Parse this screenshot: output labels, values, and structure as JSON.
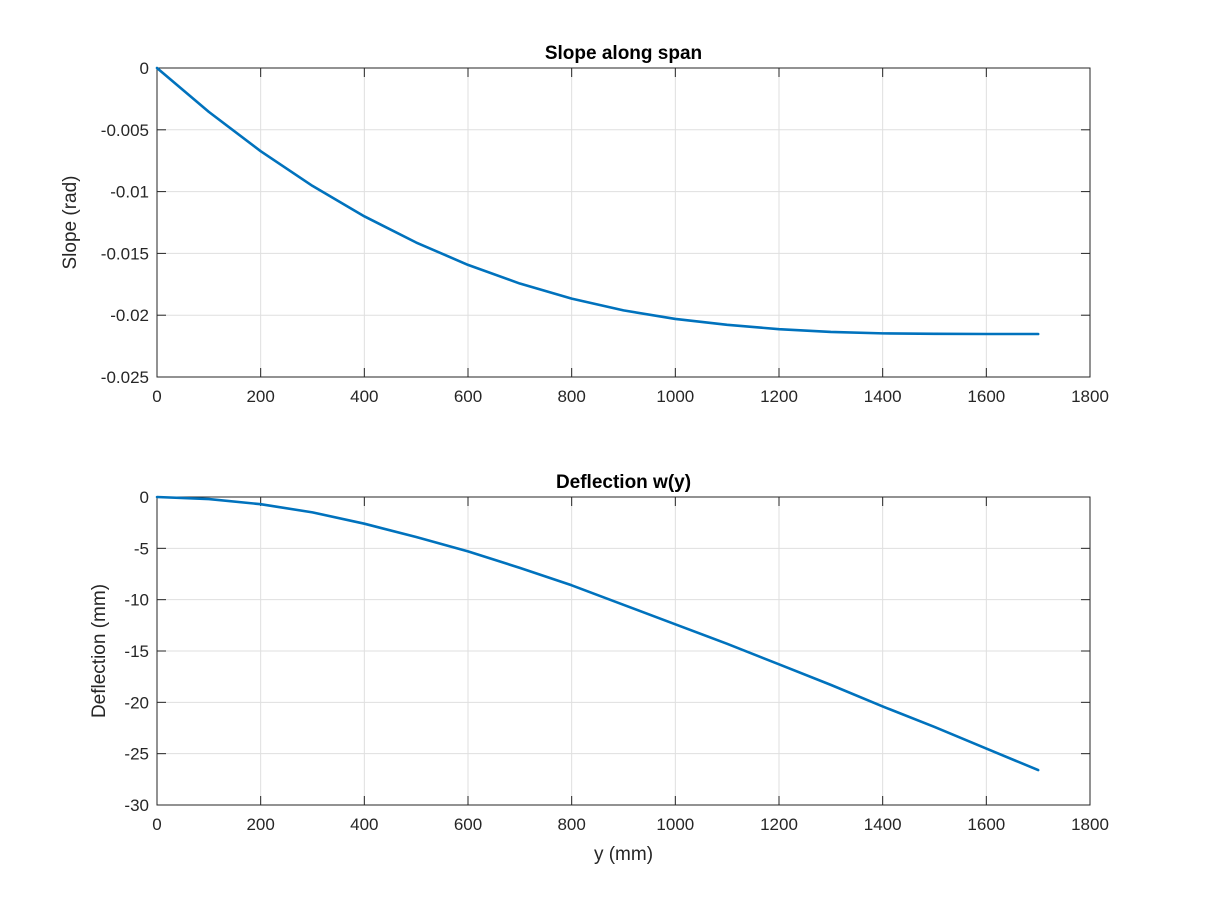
{
  "chart_data": [
    {
      "type": "line",
      "title": "Slope along span",
      "xlabel": "",
      "ylabel": "Slope (rad)",
      "xlim": [
        0,
        1800
      ],
      "ylim": [
        -0.025,
        0
      ],
      "xticks": [
        "0",
        "200",
        "400",
        "600",
        "800",
        "1000",
        "1200",
        "1400",
        "1600",
        "1800"
      ],
      "yticks": [
        "0",
        "-0.005",
        "-0.01",
        "-0.015",
        "-0.02",
        "-0.025"
      ],
      "grid": true,
      "line_color": "#0072BD",
      "series": [
        {
          "x": [
            0,
            100,
            200,
            300,
            400,
            500,
            600,
            700,
            800,
            900,
            1000,
            1100,
            1200,
            1300,
            1400,
            1500,
            1600,
            1700
          ],
          "y": [
            0,
            -0.00355,
            -0.00673,
            -0.00954,
            -0.012,
            -0.01412,
            -0.01593,
            -0.01744,
            -0.01866,
            -0.01961,
            -0.0203,
            -0.02078,
            -0.02113,
            -0.02135,
            -0.02147,
            -0.02151,
            -0.02152,
            -0.02152
          ]
        }
      ]
    },
    {
      "type": "line",
      "title": "Deflection w(y)",
      "xlabel": "y (mm)",
      "ylabel": "Deflection (mm)",
      "xlim": [
        0,
        1800
      ],
      "ylim": [
        -30,
        0
      ],
      "xticks": [
        "0",
        "200",
        "400",
        "600",
        "800",
        "1000",
        "1200",
        "1400",
        "1600",
        "1800"
      ],
      "yticks": [
        "0",
        "-5",
        "-10",
        "-15",
        "-20",
        "-25",
        "-30"
      ],
      "grid": true,
      "line_color": "#0072BD",
      "series": [
        {
          "x": [
            0,
            100,
            200,
            300,
            400,
            500,
            600,
            700,
            800,
            900,
            1000,
            1100,
            1200,
            1300,
            1400,
            1500,
            1600,
            1700
          ],
          "y": [
            0,
            -0.2,
            -0.7,
            -1.5,
            -2.6,
            -3.9,
            -5.3,
            -6.9,
            -8.6,
            -10.5,
            -12.4,
            -14.3,
            -16.3,
            -18.3,
            -20.4,
            -22.4,
            -24.5,
            -26.6
          ]
        }
      ]
    }
  ]
}
